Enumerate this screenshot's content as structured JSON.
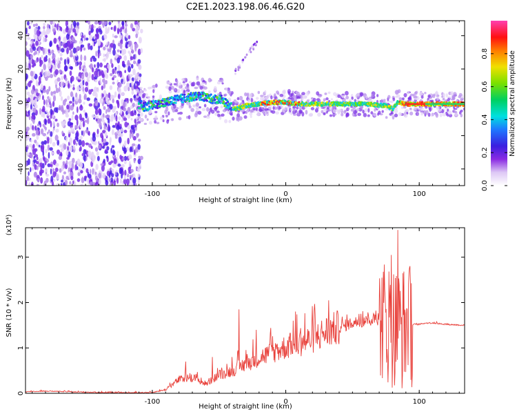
{
  "figure": {
    "title": "C2E1.2023.198.06.46.G20"
  },
  "chart_data": [
    {
      "type": "heatmap",
      "xlabel": "Height of straight line (km)",
      "ylabel": "Frequency (Hz)",
      "xlim": [
        -195,
        134
      ],
      "ylim": [
        -50,
        49
      ],
      "xticks": [
        -100,
        0,
        100
      ],
      "yticks": [
        -40,
        -20,
        0,
        20,
        40
      ],
      "colorbar": {
        "label": "Normalized spectral amplitude",
        "range": [
          0,
          1
        ],
        "ticks": [
          "0.0",
          "0.2",
          "0.4",
          "0.6",
          "0.8"
        ],
        "colormap": "rainbow (white-violet-blue-cyan-green-yellow-red-magenta)"
      },
      "ridge": {
        "description": "dominant frequency ridge",
        "x": [
          -108,
          -95,
          -80,
          -72,
          -65,
          -55,
          -48,
          -43,
          -38,
          -30,
          -20,
          -10,
          0,
          10,
          20,
          40,
          60,
          75,
          80,
          84,
          90,
          100,
          110,
          120,
          134
        ],
        "y": [
          -3,
          -1,
          2,
          3,
          4,
          2,
          2,
          -2,
          -4,
          -2,
          -1,
          0,
          0,
          -1,
          -1,
          -1,
          -1,
          -2,
          -4,
          0,
          -1,
          -1,
          -1,
          -1,
          -1
        ]
      }
    },
    {
      "type": "line",
      "xlabel": "Height of straight line (km)",
      "ylabel": "SNR (10 * v/v)",
      "yscale_label": "(x10⁴)",
      "xlim": [
        -195,
        134
      ],
      "ylim": [
        0,
        3.65
      ],
      "xticks": [
        -100,
        0,
        100
      ],
      "yticks": [
        0,
        1,
        2,
        3
      ],
      "series": [
        {
          "color": "#e8403a",
          "envelope_x": [
            -195,
            -180,
            -160,
            -120,
            -100,
            -90,
            -80,
            -70,
            -60,
            -50,
            -40,
            -30,
            -20,
            -10,
            0,
            10,
            20,
            30,
            40,
            50,
            60,
            70,
            75,
            80,
            85,
            88,
            92,
            96,
            100,
            105,
            110,
            120,
            134
          ],
          "envelope_y": [
            0.03,
            0.05,
            0.03,
            0.01,
            0.02,
            0.08,
            0.3,
            0.35,
            0.2,
            0.4,
            0.5,
            0.65,
            0.78,
            0.9,
            1.02,
            1.1,
            1.2,
            1.35,
            1.45,
            1.55,
            1.6,
            1.65,
            1.6,
            1.5,
            1.45,
            1.45,
            1.48,
            1.52,
            1.52,
            1.55,
            1.55,
            1.52,
            1.5
          ],
          "peaks": [
            {
              "x": -75,
              "y": 0.7
            },
            {
              "x": -55,
              "y": 0.8
            },
            {
              "x": -35,
              "y": 1.85
            },
            {
              "x": -22,
              "y": 1.4
            },
            {
              "x": 55,
              "y": 1.75
            },
            {
              "x": 72,
              "y": 2.55
            },
            {
              "x": 79,
              "y": 3.05
            },
            {
              "x": 84,
              "y": 3.6
            },
            {
              "x": 92,
              "y": 2.4
            }
          ]
        }
      ]
    }
  ]
}
